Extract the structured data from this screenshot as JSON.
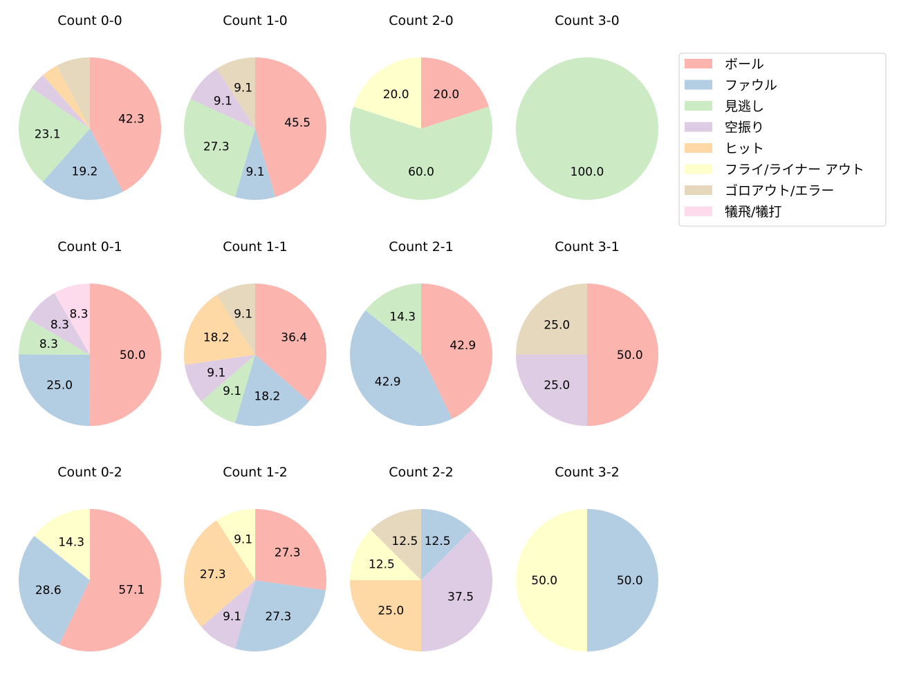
{
  "chart_data": {
    "type": "pie",
    "start_angle_deg": 90,
    "direction": "clockwise",
    "value_label_format": "%.1f",
    "legend": {
      "placement": "upper-right",
      "entries": [
        {
          "name": "ボール",
          "color": "#fbb4ae"
        },
        {
          "name": "ファウル",
          "color": "#b3cde3"
        },
        {
          "name": "見逃し",
          "color": "#ccebc5"
        },
        {
          "name": "空振り",
          "color": "#decbe4"
        },
        {
          "name": "ヒット",
          "color": "#fed9a6"
        },
        {
          "name": "フライ/ライナー アウト",
          "color": "#ffffcc"
        },
        {
          "name": "ゴロアウト/エラー",
          "color": "#e5d8bd"
        },
        {
          "name": "犠飛/犠打",
          "color": "#fddaec"
        }
      ]
    },
    "pies": [
      {
        "title": "Count 0-0",
        "values": [
          42.3,
          19.2,
          23.1,
          3.8,
          3.8,
          0,
          7.7,
          0
        ]
      },
      {
        "title": "Count 1-0",
        "values": [
          45.5,
          9.1,
          27.3,
          9.1,
          0,
          0,
          9.1,
          0
        ]
      },
      {
        "title": "Count 2-0",
        "values": [
          20.0,
          0,
          60.0,
          0,
          0,
          20.0,
          0,
          0
        ]
      },
      {
        "title": "Count 3-0",
        "values": [
          0,
          0,
          100.0,
          0,
          0,
          0,
          0,
          0
        ]
      },
      {
        "title": "Count 0-1",
        "values": [
          50.0,
          25.0,
          8.3,
          8.3,
          0,
          0,
          0,
          8.3
        ]
      },
      {
        "title": "Count 1-1",
        "values": [
          36.4,
          18.2,
          9.1,
          9.1,
          18.2,
          0,
          9.1,
          0
        ]
      },
      {
        "title": "Count 2-1",
        "values": [
          42.9,
          42.9,
          14.3,
          0,
          0,
          0,
          0,
          0
        ]
      },
      {
        "title": "Count 3-1",
        "values": [
          50.0,
          0,
          0,
          25.0,
          0,
          0,
          25.0,
          0
        ]
      },
      {
        "title": "Count 0-2",
        "values": [
          57.1,
          28.6,
          0,
          0,
          0,
          14.3,
          0,
          0
        ]
      },
      {
        "title": "Count 1-2",
        "values": [
          27.3,
          27.3,
          0,
          9.1,
          27.3,
          9.1,
          0,
          0
        ]
      },
      {
        "title": "Count 2-2",
        "values": [
          0,
          12.5,
          0,
          37.5,
          25.0,
          12.5,
          12.5,
          0
        ]
      },
      {
        "title": "Count 3-2",
        "values": [
          0,
          50.0,
          0,
          0,
          0,
          50.0,
          0,
          0
        ]
      }
    ]
  }
}
